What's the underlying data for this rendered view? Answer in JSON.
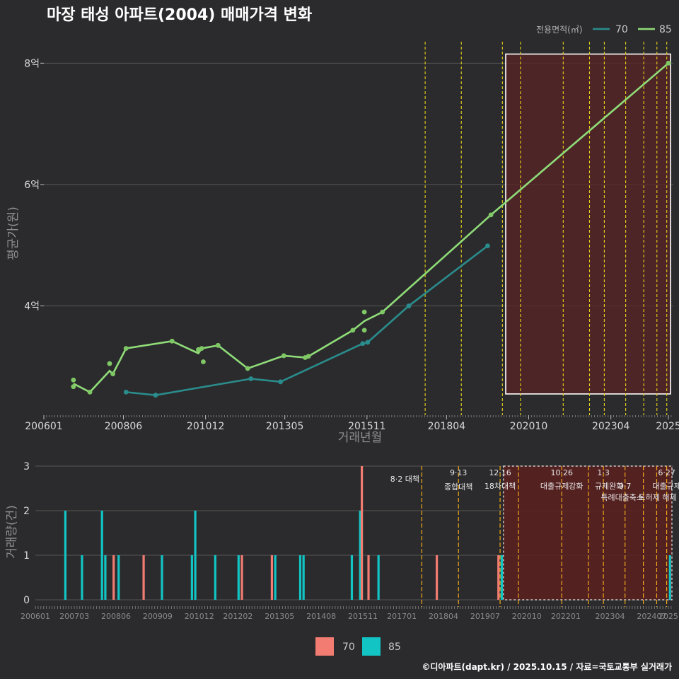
{
  "title": "마장 태성 아파트(2004) 매매가격 변화",
  "credit": "©디아파트(dapt.kr) / 2025.10.15 / 자료=국토교통부 실거래가",
  "colors": {
    "background": "#2b2b2d",
    "line_70": "#2a8c8c",
    "line_85": "#8fdc78",
    "point_85": "#7fc865",
    "bar_70": "#f27c72",
    "bar_85": "#12c4c4",
    "policy_line": "#e8d21a",
    "highlight_fill": "#5a2424",
    "grid": "#555555"
  },
  "chart_data": [
    {
      "type": "line",
      "title": "마장 태성 아파트(2004) 매매가격 변화",
      "xlabel": "거래년월",
      "ylabel": "평균가(원)",
      "ylim": [
        2.2,
        8.4
      ],
      "yticks": [
        4,
        6,
        8
      ],
      "ytick_labels": [
        "4억",
        "6억",
        "8억"
      ],
      "xtick_labels": [
        "200601",
        "200806",
        "201012",
        "201305",
        "201511",
        "201804",
        "202010",
        "202304",
        "2025"
      ],
      "xtick_values": [
        2006.0,
        2008.42,
        2010.92,
        2013.33,
        2015.83,
        2018.25,
        2020.75,
        2023.25,
        2025.0
      ],
      "xlim": [
        2006.0,
        2025.15
      ],
      "legend_title": "전용면적(㎡)",
      "legend": [
        "70",
        "85"
      ],
      "series": [
        {
          "name": "70",
          "line": [
            [
              2008.5,
              2.58
            ],
            [
              2009.4,
              2.53
            ],
            [
              2012.3,
              2.8
            ],
            [
              2013.2,
              2.75
            ],
            [
              2015.7,
              3.38
            ],
            [
              2015.85,
              3.4
            ],
            [
              2017.1,
              4.0
            ],
            [
              2019.5,
              4.99
            ]
          ],
          "points": [
            [
              2008.5,
              2.58
            ],
            [
              2009.4,
              2.53
            ],
            [
              2012.3,
              2.8
            ],
            [
              2013.2,
              2.75
            ],
            [
              2015.7,
              3.38
            ],
            [
              2015.85,
              3.4
            ],
            [
              2017.1,
              4.0
            ],
            [
              2019.5,
              4.99
            ]
          ]
        },
        {
          "name": "85",
          "line": [
            [
              2006.9,
              2.72
            ],
            [
              2007.4,
              2.58
            ],
            [
              2008.0,
              2.93
            ],
            [
              2008.1,
              2.88
            ],
            [
              2008.5,
              3.3
            ],
            [
              2009.9,
              3.42
            ],
            [
              2010.7,
              3.22
            ],
            [
              2010.8,
              3.3
            ],
            [
              2011.3,
              3.35
            ],
            [
              2012.2,
              2.97
            ],
            [
              2013.3,
              3.18
            ],
            [
              2013.95,
              3.15
            ],
            [
              2014.05,
              3.17
            ],
            [
              2015.4,
              3.6
            ],
            [
              2015.75,
              3.75
            ],
            [
              2016.3,
              3.9
            ],
            [
              2019.6,
              5.5
            ],
            [
              2025.0,
              8.0
            ]
          ],
          "points": [
            [
              2006.9,
              2.78
            ],
            [
              2006.9,
              2.67
            ],
            [
              2007.4,
              2.58
            ],
            [
              2008.0,
              3.05
            ],
            [
              2008.1,
              2.88
            ],
            [
              2008.5,
              3.3
            ],
            [
              2009.9,
              3.42
            ],
            [
              2010.7,
              3.28
            ],
            [
              2010.8,
              3.3
            ],
            [
              2010.85,
              3.08
            ],
            [
              2011.3,
              3.35
            ],
            [
              2012.2,
              2.97
            ],
            [
              2013.3,
              3.18
            ],
            [
              2013.95,
              3.15
            ],
            [
              2014.05,
              3.17
            ],
            [
              2015.4,
              3.6
            ],
            [
              2015.75,
              3.9
            ],
            [
              2015.75,
              3.6
            ],
            [
              2016.3,
              3.9
            ],
            [
              2019.6,
              5.5
            ],
            [
              2025.0,
              8.0
            ]
          ]
        }
      ]
    },
    {
      "type": "bar",
      "xlabel": "",
      "ylabel": "거래량(건)",
      "ylim": [
        0,
        3
      ],
      "yticks": [
        0,
        1,
        2,
        3
      ],
      "xtick_labels": [
        "200601",
        "200703",
        "200806",
        "200909",
        "201012",
        "201202",
        "201305",
        "201408",
        "201511",
        "201701",
        "201804",
        "201907",
        "202010",
        "202201",
        "202304",
        "202407",
        "2025"
      ],
      "xtick_values": [
        2006.0,
        2007.17,
        2008.42,
        2009.67,
        2010.92,
        2012.08,
        2013.33,
        2014.58,
        2015.83,
        2017.0,
        2018.25,
        2019.5,
        2020.75,
        2021.92,
        2023.25,
        2024.5,
        2025.0
      ],
      "xlim": [
        2006.0,
        2025.15
      ],
      "legend": [
        "70",
        "85"
      ],
      "series": [
        {
          "name": "70",
          "bars": [
            [
              2008.35,
              1
            ],
            [
              2009.25,
              1
            ],
            [
              2012.2,
              1
            ],
            [
              2013.1,
              1
            ],
            [
              2015.8,
              3
            ],
            [
              2016.0,
              1
            ],
            [
              2018.05,
              1
            ],
            [
              2019.9,
              1
            ]
          ]
        },
        {
          "name": "85",
          "bars": [
            [
              2006.9,
              2
            ],
            [
              2007.4,
              1
            ],
            [
              2008.0,
              2
            ],
            [
              2008.1,
              1
            ],
            [
              2008.5,
              1
            ],
            [
              2009.8,
              1
            ],
            [
              2010.7,
              1
            ],
            [
              2010.8,
              2
            ],
            [
              2011.4,
              1
            ],
            [
              2012.1,
              1
            ],
            [
              2013.2,
              1
            ],
            [
              2013.95,
              1
            ],
            [
              2014.05,
              1
            ],
            [
              2015.5,
              1
            ],
            [
              2015.75,
              2
            ],
            [
              2016.3,
              1
            ],
            [
              2020.0,
              1
            ],
            [
              2025.05,
              1
            ]
          ]
        }
      ]
    }
  ],
  "policies": [
    {
      "x": 2017.6,
      "date": "8·2",
      "label": "대책"
    },
    {
      "x": 2018.7,
      "date": "9·13",
      "label": "종합대책"
    },
    {
      "x": 2019.95,
      "date": "12·16",
      "label": "18차대책"
    },
    {
      "x": 2020.5,
      "date": "",
      "label": ""
    },
    {
      "x": 2021.8,
      "date": "10·26",
      "label": "대출규제강화"
    },
    {
      "x": 2022.6,
      "date": "",
      "label": ""
    },
    {
      "x": 2023.05,
      "date": "1·3",
      "label": "규제완화"
    },
    {
      "x": 2023.7,
      "date": "9·7",
      "label": "특례대출축소"
    },
    {
      "x": 2024.25,
      "date": "",
      "label": "토허제 해제"
    },
    {
      "x": 2024.65,
      "date": "",
      "label": ""
    },
    {
      "x": 2024.95,
      "date": "6·27",
      "label": "대출규제"
    }
  ],
  "highlight_range": [
    2020.05,
    2025.15
  ]
}
